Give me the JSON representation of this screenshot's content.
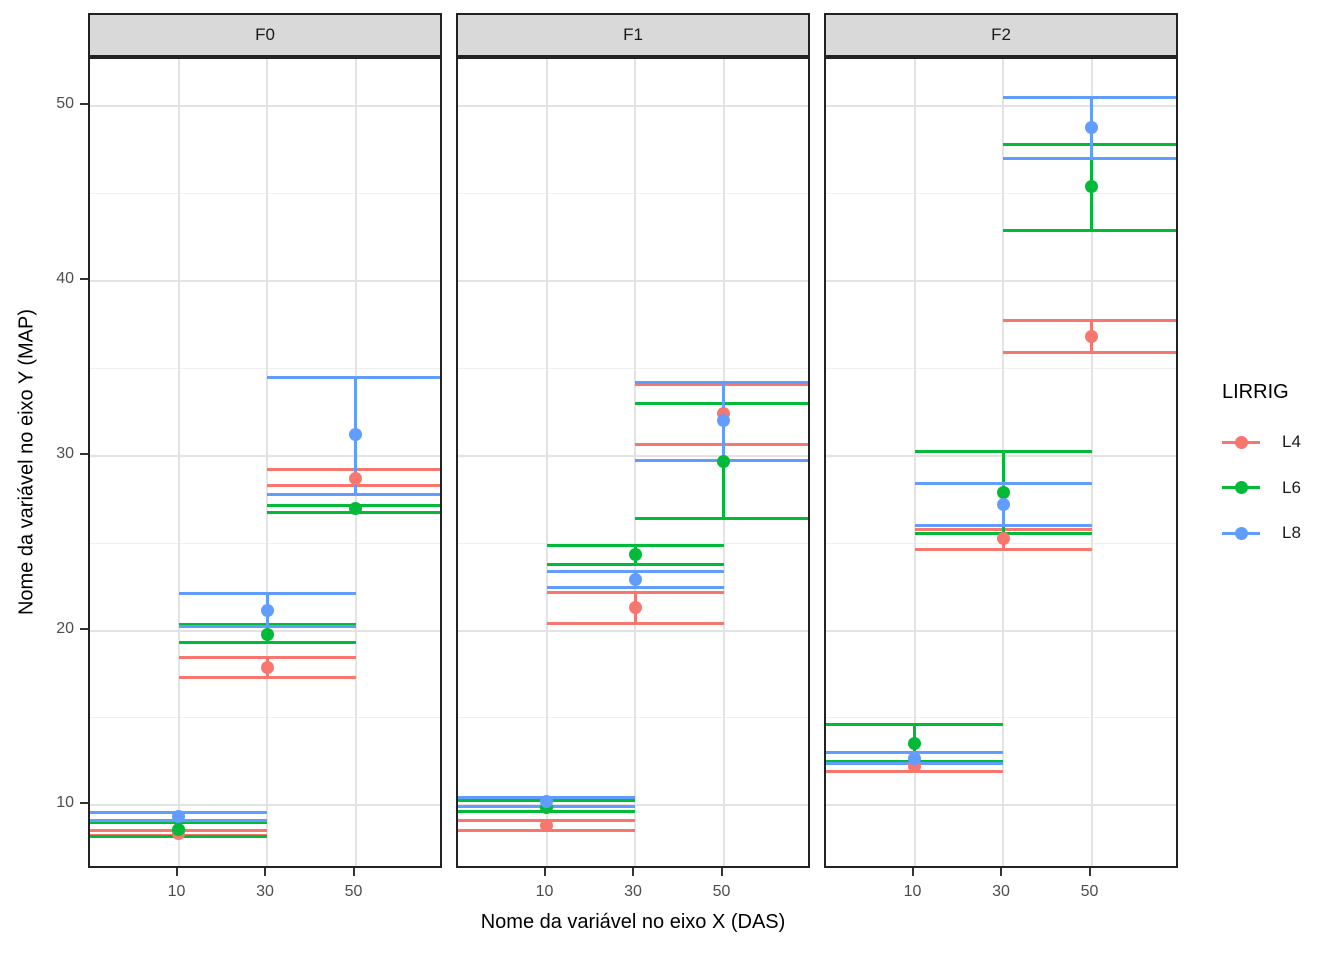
{
  "chart_data": {
    "type": "point-errorbar",
    "title": "",
    "xlabel": "Nome da variável no eixo X (DAS)",
    "ylabel": "Nome da variável no eixo Y (MAP)",
    "legend_title": "LIRRIG",
    "legend_position": "right",
    "facets": [
      "F0",
      "F1",
      "F2"
    ],
    "x_ticks": [
      10,
      30,
      50
    ],
    "y_ticks": [
      10,
      20,
      30,
      40,
      50
    ],
    "y_minor_ticks": [
      15,
      25,
      35,
      45
    ],
    "xlim": [
      -10,
      70
    ],
    "ylim": [
      6.3,
      52.7
    ],
    "cap_halfwidth": 20,
    "grid": "major-and-minor-horizontal, major-vertical",
    "series": [
      {
        "name": "L4",
        "color": "#F8766D",
        "values": {
          "F0": [
            [
              10,
              8.4,
              8.3,
              8.55
            ],
            [
              30,
              17.9,
              17.3,
              18.45
            ],
            [
              50,
              28.7,
              28.3,
              29.2
            ]
          ],
          "F1": [
            [
              10,
              8.85,
              8.55,
              9.15
            ],
            [
              30,
              21.3,
              20.4,
              22.15
            ],
            [
              50,
              32.4,
              30.65,
              34.1
            ]
          ],
          "F2": [
            [
              10,
              12.2,
              11.95,
              12.45
            ],
            [
              30,
              25.25,
              24.65,
              25.8
            ],
            [
              50,
              36.85,
              35.9,
              37.75
            ]
          ]
        }
      },
      {
        "name": "L6",
        "color": "#00BA38",
        "values": {
          "F0": [
            [
              10,
              8.6,
              8.2,
              9.0
            ],
            [
              30,
              19.8,
              19.3,
              20.35
            ],
            [
              50,
              27.0,
              26.75,
              27.15
            ]
          ],
          "F1": [
            [
              10,
              9.9,
              9.65,
              10.25
            ],
            [
              30,
              24.35,
              23.8,
              24.85
            ],
            [
              50,
              29.7,
              26.4,
              33.0
            ]
          ],
          "F2": [
            [
              10,
              13.55,
              12.5,
              14.6
            ],
            [
              30,
              27.9,
              25.55,
              30.25
            ],
            [
              50,
              45.4,
              42.9,
              47.8
            ]
          ]
        }
      },
      {
        "name": "L8",
        "color": "#619CFF",
        "values": {
          "F0": [
            [
              10,
              9.35,
              9.15,
              9.6
            ],
            [
              30,
              21.15,
              20.25,
              22.1
            ],
            [
              50,
              31.2,
              27.8,
              34.5
            ]
          ],
          "F1": [
            [
              10,
              10.2,
              9.95,
              10.45
            ],
            [
              30,
              22.9,
              22.45,
              23.35
            ],
            [
              50,
              32.0,
              29.75,
              34.2
            ]
          ],
          "F2": [
            [
              10,
              12.7,
              12.4,
              13.0
            ],
            [
              30,
              27.2,
              26.0,
              28.4
            ],
            [
              50,
              48.8,
              47.0,
              50.5
            ]
          ]
        }
      }
    ]
  },
  "styles": {
    "strip_bg": "#D9D9D9",
    "strip_text": "#1A1A1A",
    "panel_bg": "#FFFFFF",
    "panel_border": "#222222",
    "grid_major": "#E3E3E3",
    "grid_minor": "#EFEFEF",
    "tick_color": "#333333",
    "tick_label_color": "#4D4D4D"
  }
}
